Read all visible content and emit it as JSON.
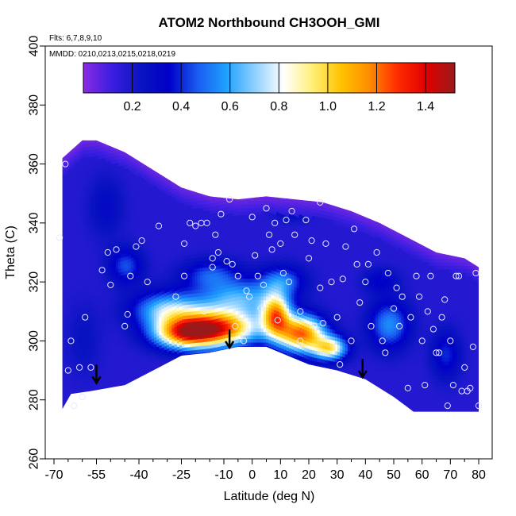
{
  "chart_data": {
    "type": "heatmap",
    "title": "ATOM2 Northbound CH3OOH_GMI",
    "flights_note": "Flts: 6,7,8,9,10",
    "dates_note": "MMDD: 0210,0213,0215,0218,0219",
    "xlabel": "Latitude (deg N)",
    "ylabel": "Theta (C)",
    "xlim": [
      -70,
      82
    ],
    "ylim": [
      260,
      400
    ],
    "x_major_ticks": [
      -70,
      -55,
      -40,
      -25,
      -10,
      0,
      10,
      20,
      30,
      40,
      50,
      60,
      70,
      80
    ],
    "x_minor_ticks": [
      -65,
      -60,
      -50,
      -45,
      -35,
      -30,
      -20,
      -15,
      -5,
      5,
      15,
      25,
      35,
      45,
      55,
      65,
      75
    ],
    "y_ticks": [
      260,
      280,
      300,
      320,
      340,
      360,
      380,
      400
    ],
    "colorbar": {
      "range": [
        0,
        1.52
      ],
      "ticks": [
        0.2,
        0.4,
        0.6,
        0.8,
        1.0,
        1.2,
        1.4
      ],
      "tick_labels": [
        "0.2",
        "0.4",
        "0.6",
        "0.8",
        "1.0",
        "1.2",
        "1.4"
      ],
      "colors": [
        "#8a2be2",
        "#3a1ee0",
        "#0a14c0",
        "#0000c8",
        "#1a5cf0",
        "#1ea0ff",
        "#8ed0ff",
        "#ffffff",
        "#fff07a",
        "#ffc400",
        "#ff8c00",
        "#ff2a00",
        "#e00000",
        "#9a1a1a"
      ]
    },
    "upper_boundary": [
      [
        -67,
        362
      ],
      [
        -60,
        368
      ],
      [
        -55,
        368
      ],
      [
        -45,
        364
      ],
      [
        -35,
        358
      ],
      [
        -25,
        352
      ],
      [
        -15,
        349
      ],
      [
        -5,
        348
      ],
      [
        5,
        349
      ],
      [
        15,
        348
      ],
      [
        25,
        347
      ],
      [
        35,
        344
      ],
      [
        45,
        340
      ],
      [
        55,
        335
      ],
      [
        65,
        330
      ],
      [
        75,
        328
      ],
      [
        80,
        325
      ]
    ],
    "lower_boundary": [
      [
        -67,
        277
      ],
      [
        -64,
        282
      ],
      [
        -57,
        283
      ],
      [
        -45,
        285
      ],
      [
        -35,
        290
      ],
      [
        -25,
        295
      ],
      [
        -15,
        296
      ],
      [
        -5,
        298
      ],
      [
        5,
        298
      ],
      [
        10,
        296
      ],
      [
        20,
        292
      ],
      [
        30,
        290
      ],
      [
        40,
        287
      ],
      [
        50,
        281
      ],
      [
        57,
        276
      ],
      [
        65,
        276
      ],
      [
        75,
        276
      ],
      [
        80,
        276
      ]
    ],
    "features": [
      {
        "lat": -12,
        "theta": 304,
        "value": 1.2,
        "sx": 14,
        "sy": 6
      },
      {
        "lat": -24,
        "theta": 302,
        "value": 1.05,
        "sx": 11,
        "sy": 5
      },
      {
        "lat": 8,
        "theta": 308,
        "value": 1.05,
        "sx": 5,
        "sy": 7
      },
      {
        "lat": 17,
        "theta": 302,
        "value": 1.2,
        "sx": 8,
        "sy": 6
      },
      {
        "lat": 27,
        "theta": 297,
        "value": 0.9,
        "sx": 6,
        "sy": 4
      },
      {
        "lat": -30,
        "theta": 310,
        "value": 0.7,
        "sx": 12,
        "sy": 6
      },
      {
        "lat": -5,
        "theta": 314,
        "value": 0.6,
        "sx": 14,
        "sy": 6
      },
      {
        "lat": 10,
        "theta": 320,
        "value": 0.5,
        "sx": 8,
        "sy": 5
      },
      {
        "lat": -15,
        "theta": 322,
        "value": 0.45,
        "sx": 10,
        "sy": 5
      },
      {
        "lat": -45,
        "theta": 325,
        "value": 0.45,
        "sx": 6,
        "sy": 6
      },
      {
        "lat": 48,
        "theta": 305,
        "value": 0.55,
        "sx": 7,
        "sy": 8
      },
      {
        "lat": 68,
        "theta": 295,
        "value": 0.4,
        "sx": 5,
        "sy": 8
      },
      {
        "lat": 45,
        "theta": 320,
        "value": 0.35,
        "sx": 6,
        "sy": 4
      },
      {
        "lat": -52,
        "theta": 345,
        "value": 0.3,
        "sx": 6,
        "sy": 10
      },
      {
        "lat": 14,
        "theta": 345,
        "value": 0.4,
        "sx": 6,
        "sy": 4
      },
      {
        "lat": -60,
        "theta": 300,
        "value": 0.25,
        "sx": 6,
        "sy": 12
      }
    ],
    "background_value": 0.17,
    "points": [
      [
        -68,
        335
      ],
      [
        -66,
        360
      ],
      [
        -65,
        290
      ],
      [
        -64,
        300
      ],
      [
        -63,
        278
      ],
      [
        -61,
        291
      ],
      [
        -60,
        281
      ],
      [
        -59,
        308
      ],
      [
        -57,
        291
      ],
      [
        -53,
        324
      ],
      [
        -51,
        330
      ],
      [
        -50,
        319
      ],
      [
        -48,
        331
      ],
      [
        -45,
        305
      ],
      [
        -44,
        309
      ],
      [
        -43,
        322
      ],
      [
        -41,
        332
      ],
      [
        -39,
        334
      ],
      [
        -37,
        320
      ],
      [
        -33,
        339
      ],
      [
        -27,
        315
      ],
      [
        -24,
        322
      ],
      [
        -24,
        333
      ],
      [
        -22,
        340
      ],
      [
        -20,
        339
      ],
      [
        -18,
        340
      ],
      [
        -17,
        310
      ],
      [
        -16,
        340
      ],
      [
        -14,
        325
      ],
      [
        -14,
        328
      ],
      [
        -13,
        336
      ],
      [
        -12,
        330
      ],
      [
        -11,
        343
      ],
      [
        -9,
        327
      ],
      [
        -8,
        348
      ],
      [
        -7,
        326
      ],
      [
        -6,
        305
      ],
      [
        -5,
        322
      ],
      [
        -4,
        308
      ],
      [
        -3,
        300
      ],
      [
        -2,
        303
      ],
      [
        -2,
        317
      ],
      [
        -1,
        315
      ],
      [
        0,
        342
      ],
      [
        1,
        329
      ],
      [
        2,
        322
      ],
      [
        3,
        311
      ],
      [
        4,
        319
      ],
      [
        5,
        345
      ],
      [
        6,
        336
      ],
      [
        7,
        331
      ],
      [
        8,
        340
      ],
      [
        9,
        307
      ],
      [
        10,
        333
      ],
      [
        11,
        323
      ],
      [
        12,
        341
      ],
      [
        13,
        320
      ],
      [
        14,
        344
      ],
      [
        15,
        336
      ],
      [
        17,
        300
      ],
      [
        17,
        310
      ],
      [
        19,
        341
      ],
      [
        20,
        328
      ],
      [
        21,
        334
      ],
      [
        22,
        305
      ],
      [
        24,
        347
      ],
      [
        24,
        318
      ],
      [
        25,
        306
      ],
      [
        26,
        333
      ],
      [
        28,
        320
      ],
      [
        30,
        308
      ],
      [
        31,
        292
      ],
      [
        32,
        321
      ],
      [
        33,
        332
      ],
      [
        35,
        300
      ],
      [
        36,
        338
      ],
      [
        37,
        326
      ],
      [
        38,
        313
      ],
      [
        40,
        320
      ],
      [
        41,
        326
      ],
      [
        42,
        305
      ],
      [
        44,
        330
      ],
      [
        46,
        300
      ],
      [
        47,
        296
      ],
      [
        48,
        323
      ],
      [
        50,
        311
      ],
      [
        51,
        318
      ],
      [
        52,
        305
      ],
      [
        53,
        315
      ],
      [
        55,
        284
      ],
      [
        56,
        308
      ],
      [
        58,
        322
      ],
      [
        59,
        315
      ],
      [
        60,
        300
      ],
      [
        61,
        285
      ],
      [
        62,
        310
      ],
      [
        63,
        322
      ],
      [
        64,
        304
      ],
      [
        65,
        296
      ],
      [
        66,
        296
      ],
      [
        67,
        308
      ],
      [
        68,
        314
      ],
      [
        69,
        278
      ],
      [
        70,
        300
      ],
      [
        71,
        285
      ],
      [
        72,
        322
      ],
      [
        73,
        322
      ],
      [
        74,
        283
      ],
      [
        75,
        291
      ],
      [
        76,
        283
      ],
      [
        77,
        284
      ],
      [
        78,
        298
      ],
      [
        79,
        323
      ],
      [
        80,
        278
      ]
    ],
    "arrows": [
      {
        "lat": -55,
        "theta": 286
      },
      {
        "lat": -8,
        "theta": 298
      },
      {
        "lat": 39,
        "theta": 288
      }
    ]
  }
}
